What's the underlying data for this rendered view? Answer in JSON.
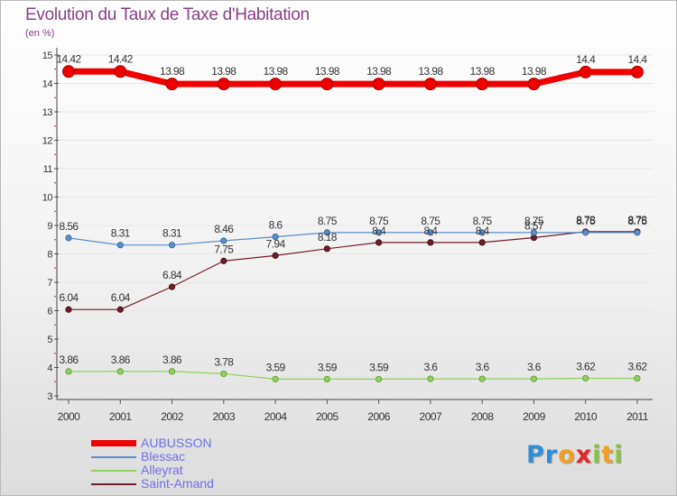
{
  "title": "Evolution du Taux de Taxe d'Habitation",
  "subtitle": "(en %)",
  "logo_letters": [
    {
      "ch": "P",
      "color": "#2f8fd8"
    },
    {
      "ch": "r",
      "color": "#2f8fd8"
    },
    {
      "ch": "o",
      "color": "#f0a020"
    },
    {
      "ch": "x",
      "color": "#e02828"
    },
    {
      "ch": "i",
      "color": "#86c440"
    },
    {
      "ch": "t",
      "color": "#f0a020"
    },
    {
      "ch": "i",
      "color": "#86c440"
    }
  ],
  "chart_data": {
    "type": "line",
    "title": "Evolution du Taux de Taxe d'Habitation",
    "subtitle": "(en %)",
    "x": [
      "2000",
      "2001",
      "2002",
      "2003",
      "2004",
      "2005",
      "2006",
      "2007",
      "2008",
      "2009",
      "2010",
      "2011"
    ],
    "ylim": [
      3,
      15
    ],
    "yticks": [
      3,
      4,
      5,
      6,
      7,
      8,
      9,
      10,
      11,
      12,
      13,
      14,
      15
    ],
    "grid": "horizontal",
    "legend": "bottom-left",
    "series": [
      {
        "name": "AUBUSSON",
        "color": "#ee0000",
        "values": [
          14.42,
          14.42,
          13.98,
          13.98,
          13.98,
          13.98,
          13.98,
          13.98,
          13.98,
          13.98,
          14.4,
          14.4
        ],
        "labels": [
          "14.42",
          "14.42",
          "13.98",
          "13.98",
          "13.98",
          "13.98",
          "13.98",
          "13.98",
          "13.98",
          "13.98",
          "14.4",
          "14.4"
        ]
      },
      {
        "name": "Blessac",
        "color": "#5b8ec8",
        "values": [
          8.56,
          8.31,
          8.31,
          8.46,
          8.6,
          8.75,
          8.75,
          8.75,
          8.75,
          8.75,
          8.75,
          8.75
        ],
        "labels": [
          "8.56",
          "8.31",
          "8.31",
          "8.46",
          "8.6",
          "8.75",
          "8.75",
          "8.75",
          "8.75",
          "8.75",
          "8.75",
          "8.75"
        ]
      },
      {
        "name": "Alleyrat",
        "color": "#90d060",
        "values": [
          3.86,
          3.86,
          3.86,
          3.78,
          3.59,
          3.59,
          3.59,
          3.6,
          3.6,
          3.6,
          3.62,
          3.62
        ],
        "labels": [
          "3.86",
          "3.86",
          "3.86",
          "3.78",
          "3.59",
          "3.59",
          "3.59",
          "3.6",
          "3.6",
          "3.6",
          "3.62",
          "3.62"
        ]
      },
      {
        "name": "Saint-Amand",
        "color": "#6e1e2a",
        "values": [
          6.04,
          6.04,
          6.84,
          7.75,
          7.94,
          8.18,
          8.4,
          8.4,
          8.4,
          8.57,
          8.78,
          8.78
        ],
        "labels": [
          "6.04",
          "6.04",
          "6.84",
          "7.75",
          "7.94",
          "8.18",
          "8.4",
          "8.4",
          "8.4",
          "8.57",
          "8.78",
          "8.78"
        ]
      }
    ]
  }
}
